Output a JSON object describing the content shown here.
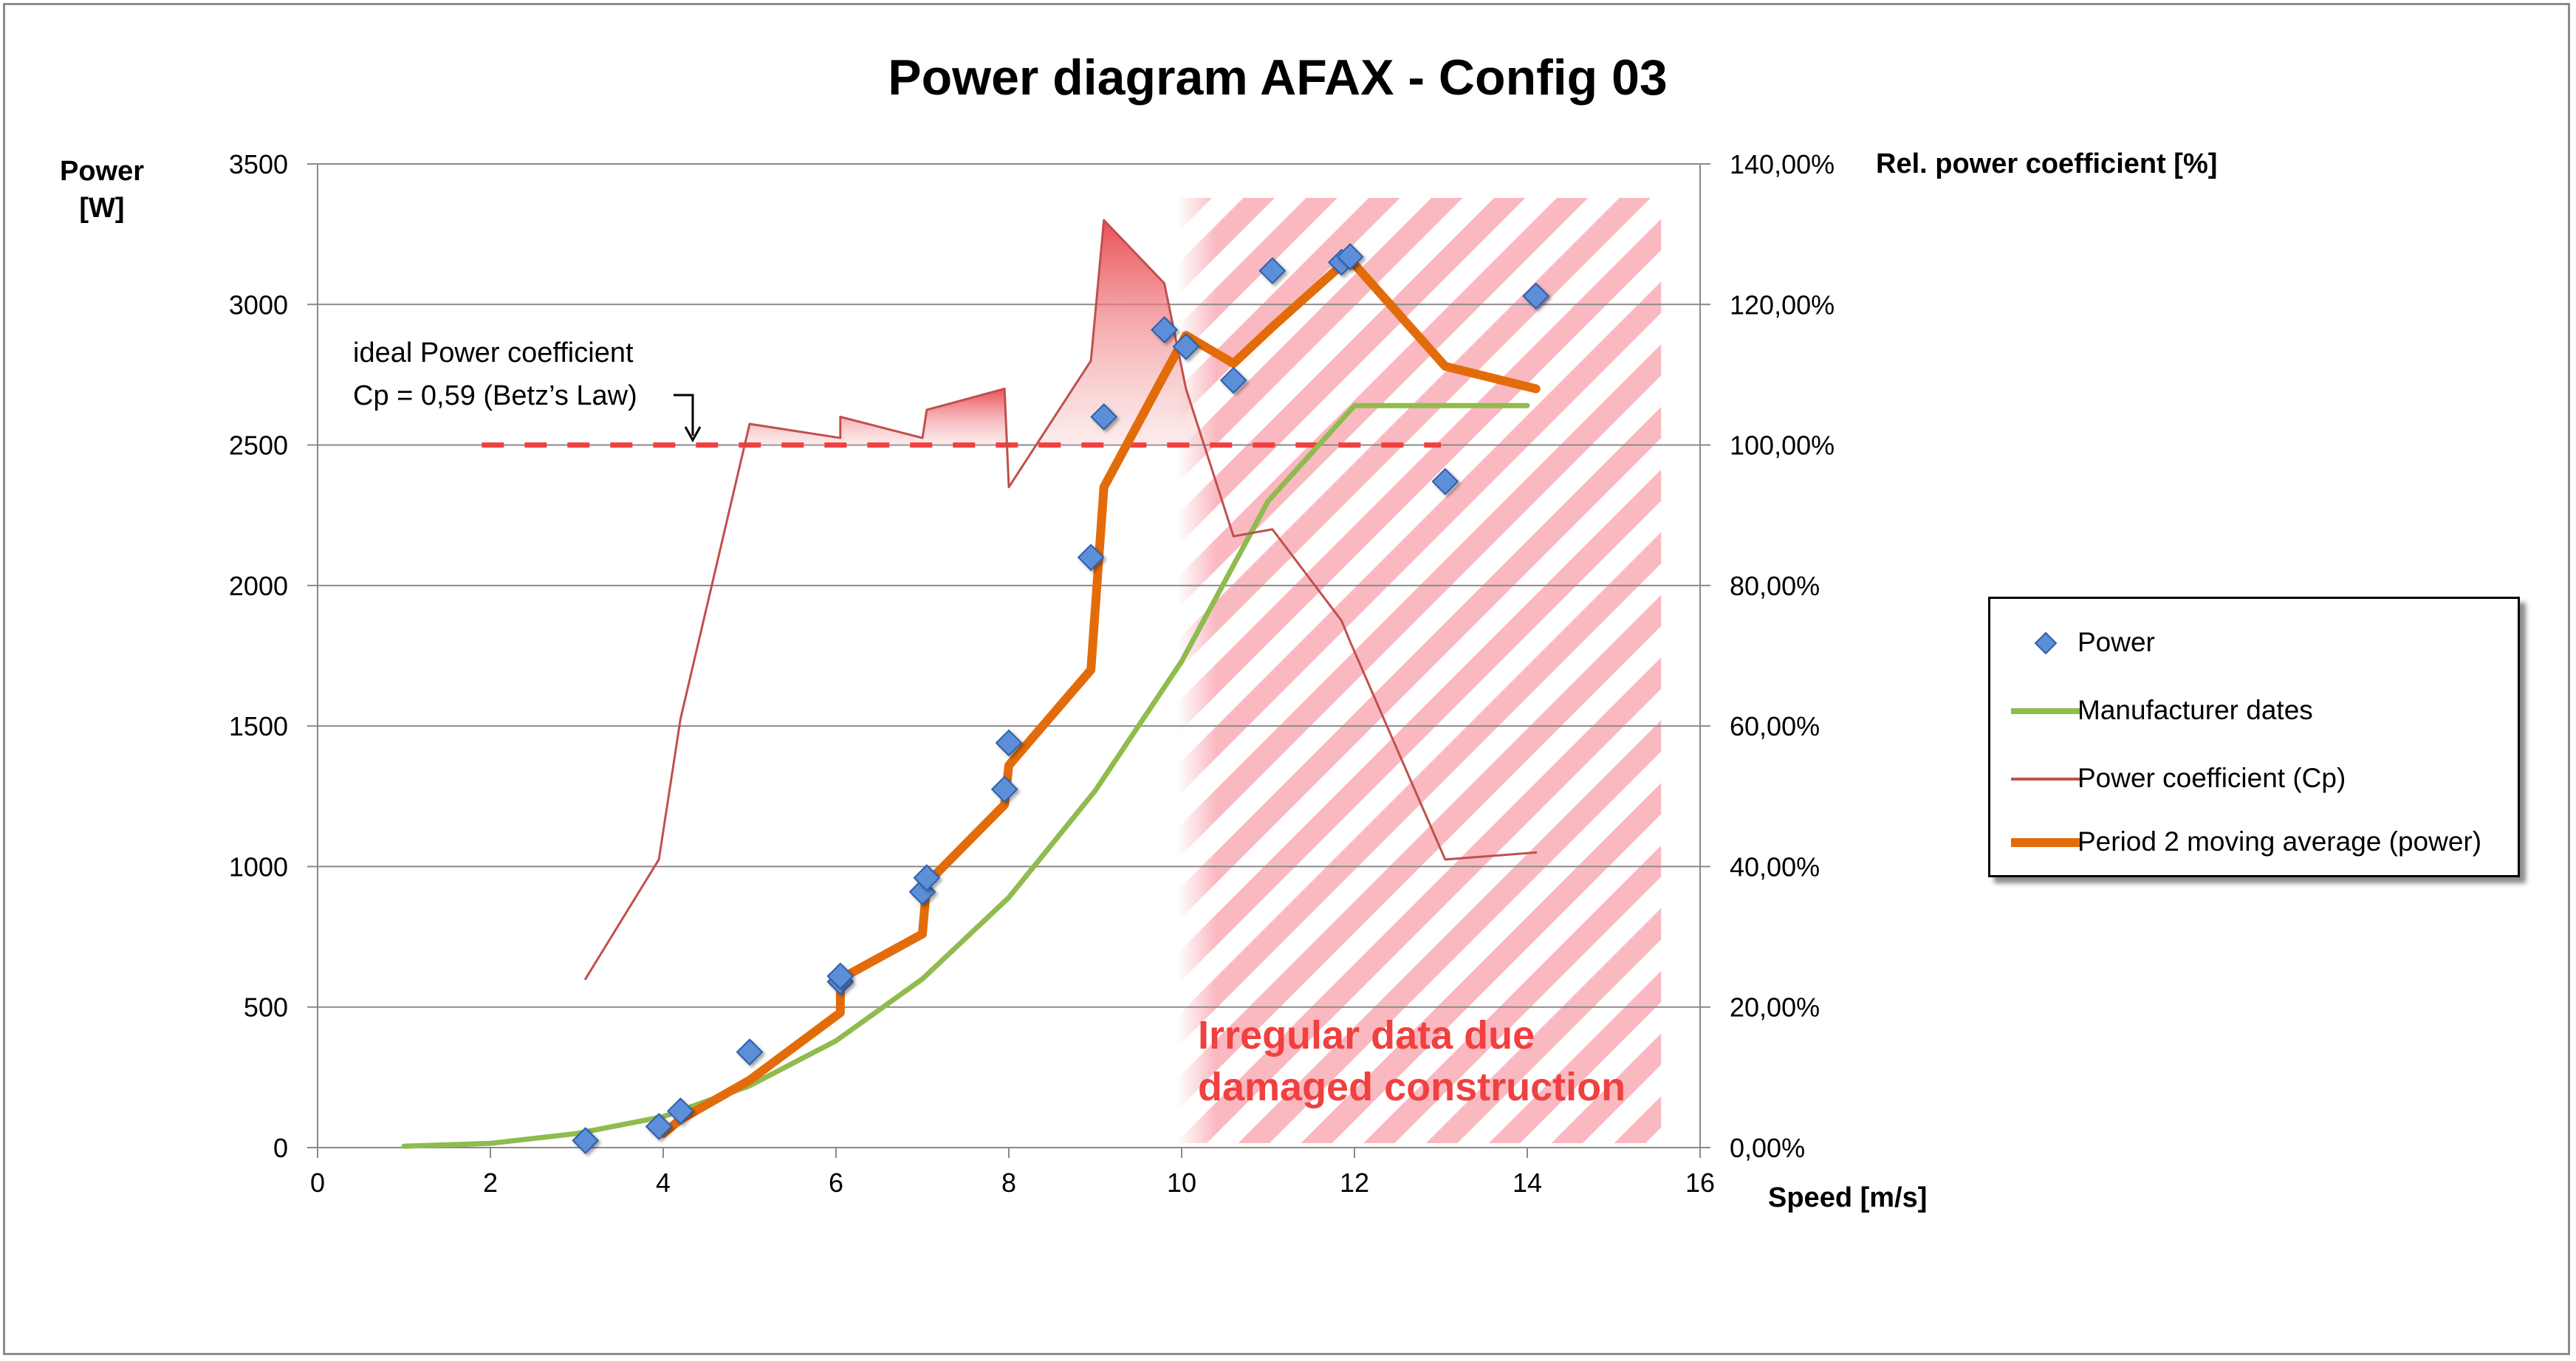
{
  "chart_data": {
    "type": "line",
    "title": "Power diagram AFAX - Config 03",
    "xlabel": "Speed [m/s]",
    "ylabel_left": "Power [W]",
    "ylabel_left_lines": [
      "Power",
      "[W]"
    ],
    "ylabel_right": "Rel. power coefficient [%]",
    "xlim": [
      0,
      16
    ],
    "ylim_left": [
      0,
      3500
    ],
    "ylim_right": [
      0,
      1.4
    ],
    "x_ticks": [
      "0",
      "2",
      "4",
      "6",
      "8",
      "10",
      "12",
      "14",
      "16"
    ],
    "y_ticks_left": [
      "0",
      "500",
      "1000",
      "1500",
      "2000",
      "2500",
      "3000",
      "3500"
    ],
    "y_ticks_right": [
      "0,00%",
      "20,00%",
      "40,00%",
      "60,00%",
      "80,00%",
      "100,00%",
      "120,00%",
      "140,00%"
    ],
    "grid": "horizontal",
    "legend_position": "right",
    "series": [
      {
        "name": "Power",
        "kind": "scatter",
        "axis": "left",
        "color": "#5b8fd8",
        "x": [
          3.1,
          3.95,
          4.2,
          5.0,
          6.05,
          6.05,
          7.0,
          7.05,
          7.95,
          8.0,
          8.95,
          9.1,
          9.8,
          10.05,
          10.6,
          11.05,
          11.85,
          11.95,
          13.05,
          14.1
        ],
        "y": [
          25,
          75,
          130,
          340,
          590,
          610,
          910,
          960,
          1275,
          1440,
          2100,
          2600,
          2910,
          2850,
          2730,
          3120,
          3150,
          3170,
          2370,
          3030
        ]
      },
      {
        "name": "Manufacturer dates",
        "kind": "line",
        "axis": "left",
        "color": "#8fbb4f",
        "x": [
          1,
          2,
          3,
          4,
          5,
          6,
          7,
          8,
          9,
          10,
          11,
          12,
          13,
          14
        ],
        "y": [
          5,
          15,
          50,
          110,
          220,
          380,
          600,
          890,
          1270,
          1730,
          2300,
          2640,
          2640,
          2640
        ]
      },
      {
        "name": "Power coefficient (Cp)",
        "kind": "line",
        "axis": "right",
        "color": "#c0504d",
        "x": [
          3.1,
          3.95,
          4.2,
          5.0,
          6.05,
          6.05,
          7.0,
          7.05,
          7.95,
          8.0,
          8.95,
          9.1,
          9.8,
          10.05,
          10.6,
          11.05,
          11.85,
          11.95,
          13.05,
          14.1
        ],
        "y": [
          0.24,
          0.41,
          0.61,
          1.03,
          1.01,
          1.04,
          1.01,
          1.05,
          1.08,
          0.94,
          1.12,
          1.32,
          1.23,
          1.08,
          0.87,
          0.88,
          0.75,
          0.72,
          0.41,
          0.42
        ]
      },
      {
        "name": "Period 2 moving average (power)",
        "kind": "line",
        "axis": "left",
        "color": "#e36c0a",
        "x": [
          4.0,
          4.2,
          5.0,
          6.05,
          6.05,
          7.0,
          7.05,
          7.95,
          8.0,
          8.95,
          9.1,
          9.8,
          10.05,
          10.6,
          11.05,
          11.85,
          11.95,
          13.05,
          14.1
        ],
        "y": [
          50,
          100,
          240,
          480,
          600,
          760,
          940,
          1220,
          1360,
          1700,
          2350,
          2750,
          2890,
          2790,
          2920,
          3140,
          3160,
          2780,
          2700
        ]
      }
    ],
    "annotations": {
      "ideal_line_label_1": "ideal Power coefficient",
      "ideal_line_label_2": "Cp = 0,59 (Betz’s Law)",
      "ideal_line_y": 1.0,
      "ideal_line_x_range": [
        1.9,
        13.0
      ],
      "ideal_line_color": "#f04040",
      "irregular_label_1": "Irregular data due",
      "irregular_label_2": "damaged construction",
      "irregular_color": "#f04040",
      "irregular_x_range": [
        9.95,
        15.55
      ]
    }
  }
}
